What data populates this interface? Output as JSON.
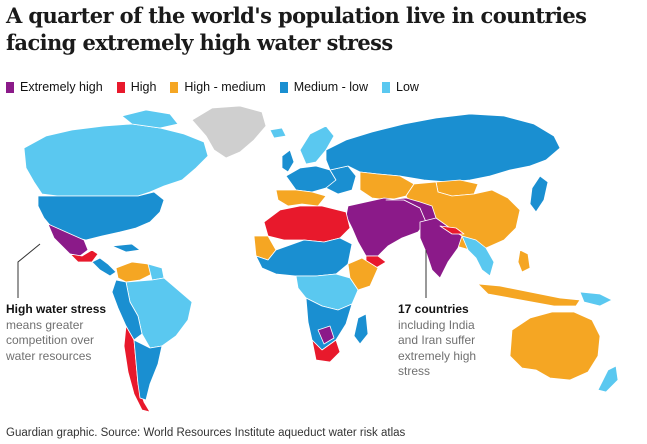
{
  "title": "A quarter of the world's population live in countries facing extremely high water stress",
  "legend": [
    {
      "label": "Extremely high",
      "color": "#8b1a89"
    },
    {
      "label": "High",
      "color": "#e8192c"
    },
    {
      "label": "High - medium",
      "color": "#f5a623"
    },
    {
      "label": "Medium - low",
      "color": "#1a8fd1"
    },
    {
      "label": "Low",
      "color": "#5ac8f0"
    }
  ],
  "no_data_color": "#cfcfcf",
  "annotations": {
    "left": {
      "heading": "High water stress",
      "body": "means greater competition over water resources"
    },
    "right": {
      "heading": "17 countries",
      "body": "including India and Iran suffer extremely high stress"
    }
  },
  "footer": "Guardian graphic. Source: World Resources Institute aqueduct water risk atlas"
}
